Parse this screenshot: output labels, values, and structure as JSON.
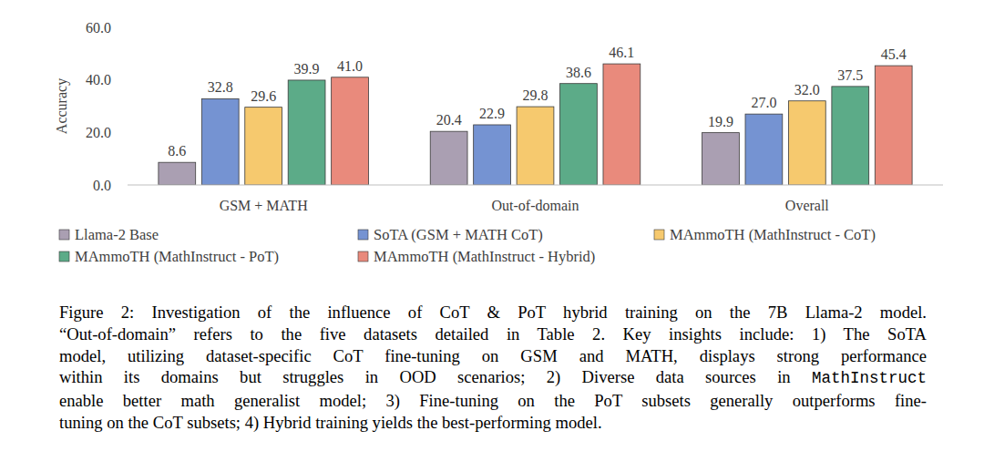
{
  "chart_data": {
    "type": "bar",
    "categories": [
      "GSM + MATH",
      "Out-of-domain",
      "Overall"
    ],
    "y_label": "Accuracy",
    "ylim": [
      0,
      60
    ],
    "yticks": [
      {
        "value": 0,
        "label": "0.0"
      },
      {
        "value": 20,
        "label": "20.0"
      },
      {
        "value": 40,
        "label": "40.0"
      },
      {
        "value": 60,
        "label": "60.0"
      }
    ],
    "grid": false,
    "legend": "bottom",
    "data_labels": true,
    "series": [
      {
        "name": "Llama-2 Base",
        "color": "#aa9fb2",
        "values": [
          8.6,
          20.4,
          19.9
        ],
        "value_labels": [
          "8.6",
          "20.4",
          "19.9"
        ]
      },
      {
        "name": "SoTA (GSM + MATH CoT)",
        "color": "#7593d2",
        "values": [
          32.8,
          22.9,
          27.0
        ],
        "value_labels": [
          "32.8",
          "22.9",
          "27.0"
        ]
      },
      {
        "name": "MAmmoTH (MathInstruct - CoT)",
        "color": "#f6c96e",
        "values": [
          29.6,
          29.8,
          32.0
        ],
        "value_labels": [
          "29.6",
          "29.8",
          "32.0"
        ]
      },
      {
        "name": "MAmmoTH (MathInstruct - PoT)",
        "color": "#5cab88",
        "values": [
          39.9,
          38.6,
          37.5
        ],
        "value_labels": [
          "39.9",
          "38.6",
          "37.5"
        ]
      },
      {
        "name": "MAmmoTH (MathInstruct - Hybrid)",
        "color": "#e98a7c",
        "values": [
          41.0,
          46.1,
          45.4
        ],
        "value_labels": [
          "41.0",
          "46.1",
          "45.4"
        ]
      }
    ]
  },
  "caption": {
    "lines": [
      [
        {
          "text": "Figure 2: Investigation of the influence of CoT & PoT hybrid training on the 7B Llama-2 model."
        }
      ],
      [
        {
          "text": "“Out-of-domain” refers to the five datasets detailed in Table 2. Key insights include: 1) The SoTA"
        }
      ],
      [
        {
          "text": "model, utilizing dataset-specific CoT fine-tuning on GSM and MATH, displays strong performance"
        }
      ],
      [
        {
          "text": "within its domains but struggles in OOD scenarios; 2) Diverse data sources in "
        },
        {
          "text": "MathInstruct",
          "font": "mono"
        }
      ],
      [
        {
          "text": "enable better math generalist model; 3) Fine-tuning on the PoT subsets generally outperforms fine-"
        }
      ],
      [
        {
          "text": "tuning on the CoT subsets; 4) Hybrid training yields the best-performing model."
        }
      ]
    ]
  }
}
